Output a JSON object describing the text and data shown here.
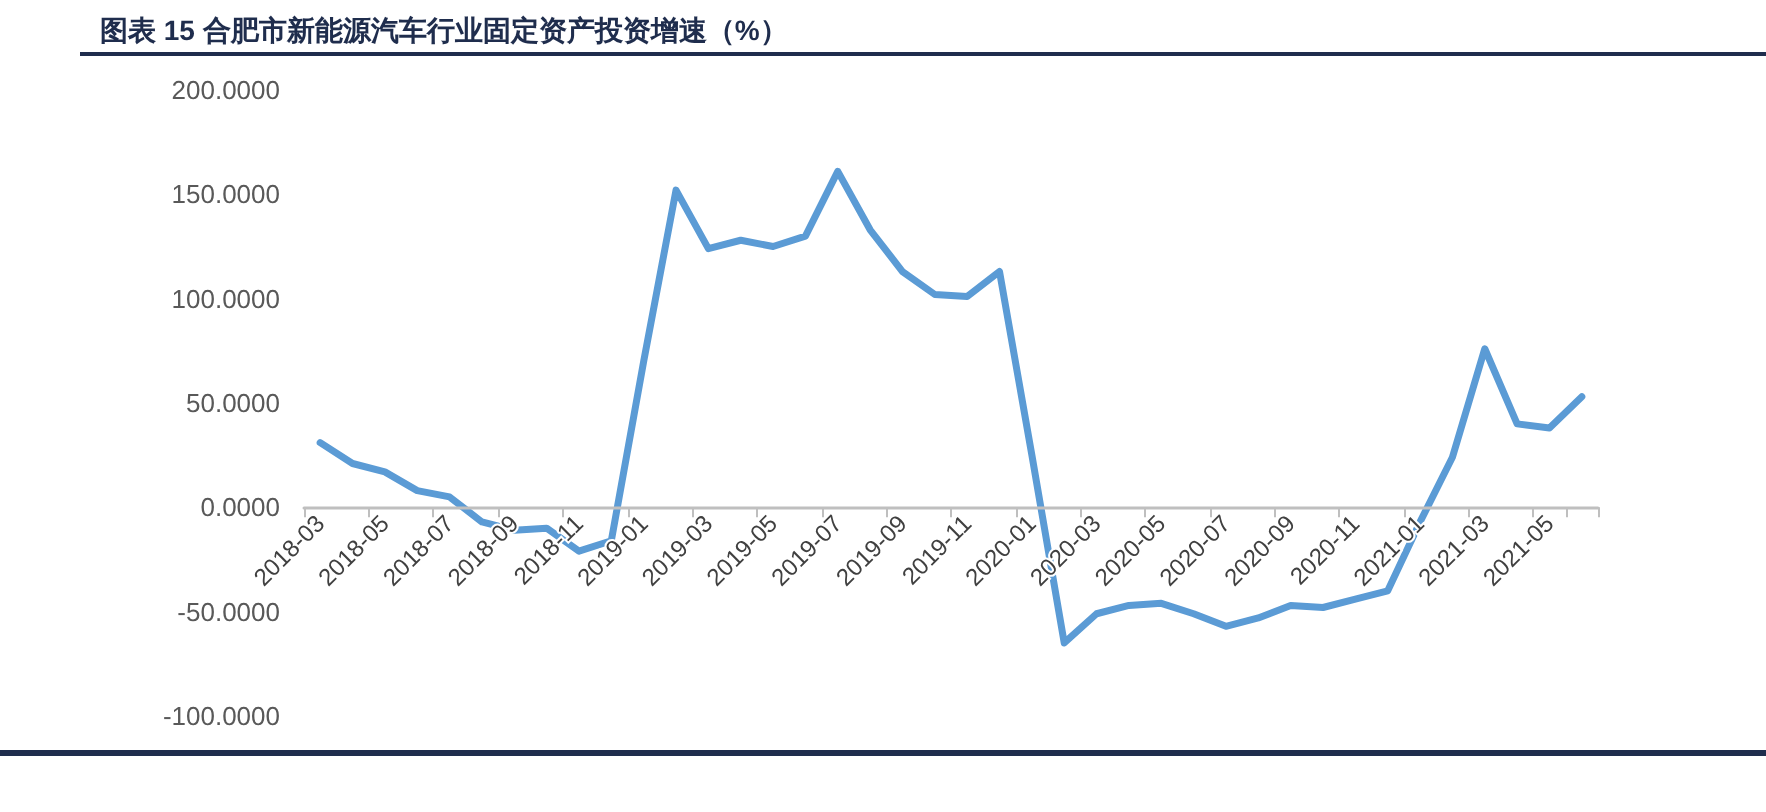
{
  "chart_data": {
    "type": "line",
    "title": "图表 15 合肥市新能源汽车行业固定资产投资增速（%）",
    "categories": [
      "2018-03",
      null,
      "2018-05",
      null,
      "2018-07",
      null,
      "2018-09",
      null,
      "2018-11",
      null,
      "2019-01",
      null,
      "2019-03",
      null,
      "2019-05",
      null,
      "2019-07",
      null,
      "2019-09",
      null,
      "2019-11",
      null,
      "2020-01",
      null,
      "2020-03",
      null,
      "2020-05",
      null,
      "2020-07",
      null,
      "2020-09",
      null,
      "2020-11",
      null,
      "2021-01",
      null,
      "2021-03",
      null,
      "2021-05",
      null
    ],
    "values": [
      31,
      21,
      17,
      8,
      5,
      -7,
      -11,
      -10,
      -21,
      -16,
      70,
      152,
      124,
      128,
      125,
      130,
      161,
      133,
      113,
      102,
      101,
      113,
      25,
      -65,
      -51,
      -47,
      -46,
      -51,
      -57,
      -53,
      -47,
      -48,
      -44,
      -40,
      -7,
      24,
      76,
      40,
      38,
      53
    ],
    "color": "#5b9bd5",
    "ylim": [
      -100,
      200
    ],
    "yticks": [
      {
        "value": -100,
        "label": "-100.0000"
      },
      {
        "value": -50,
        "label": "-50.0000"
      },
      {
        "value": 0,
        "label": "0.0000"
      },
      {
        "value": 50,
        "label": "50.0000"
      },
      {
        "value": 100,
        "label": "100.0000"
      },
      {
        "value": 150,
        "label": "150.0000"
      },
      {
        "value": 200,
        "label": "200.0000"
      }
    ]
  }
}
